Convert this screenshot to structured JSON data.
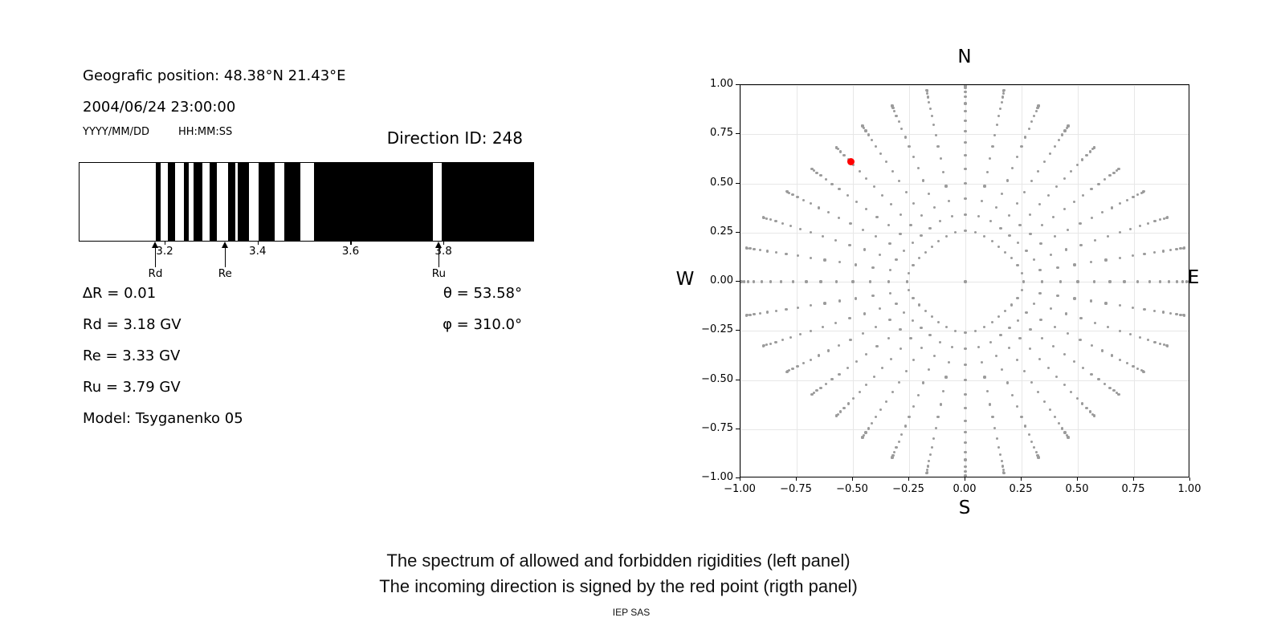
{
  "left_panel": {
    "geo_position": "Geografic position: 48.38°N 21.43°E",
    "datetime": "2004/06/24 23:00:00",
    "date_format_label": "YYYY/MM/DD",
    "time_format_label": "HH:MM:SS",
    "direction_id_label": "Direction ID: 248",
    "params": [
      "∆R = 0.01",
      "Rd = 3.18 GV",
      "Re = 3.33 GV",
      "Ru = 3.79 GV",
      "Model: Tsyganenko 05"
    ],
    "angles": [
      "θ = 53.58°",
      "φ = 310.0°"
    ]
  },
  "chart_data": [
    {
      "type": "area",
      "name": "rigidity-spectrum",
      "description": "Barcode-style spectrum of allowed (white) and forbidden (black) rigidities",
      "xlim": [
        3.015,
        3.995
      ],
      "xtick_values": [
        3.2,
        3.4,
        3.6,
        3.8
      ],
      "xtick_labels": [
        "3.2",
        "3.4",
        "3.6",
        "3.8"
      ],
      "delta_R": 0.01,
      "allowed_color": "#ffffff",
      "forbidden_color": "#000000",
      "forbidden_intervals": [
        [
          3.18,
          3.19
        ],
        [
          3.205,
          3.22
        ],
        [
          3.24,
          3.25
        ],
        [
          3.26,
          3.28
        ],
        [
          3.295,
          3.31
        ],
        [
          3.335,
          3.35
        ],
        [
          3.355,
          3.38
        ],
        [
          3.4,
          3.435
        ],
        [
          3.455,
          3.49
        ],
        [
          3.52,
          3.775
        ],
        [
          3.795,
          3.995
        ]
      ],
      "markers": [
        {
          "label": "Rd",
          "value": 3.18
        },
        {
          "label": "Re",
          "value": 3.33
        },
        {
          "label": "Ru",
          "value": 3.79
        }
      ]
    },
    {
      "type": "scatter",
      "name": "incoming-direction-map",
      "xlim": [
        -1,
        1
      ],
      "ylim": [
        -1,
        1
      ],
      "xtick_values": [
        -1.0,
        -0.75,
        -0.5,
        -0.25,
        0.0,
        0.25,
        0.5,
        0.75,
        1.0
      ],
      "xtick_labels": [
        "−1.00",
        "−0.75",
        "−0.50",
        "−0.25",
        "0.00",
        "0.25",
        "0.50",
        "0.75",
        "1.00"
      ],
      "ytick_values": [
        1.0,
        0.75,
        0.5,
        0.25,
        0.0,
        -0.25,
        -0.5,
        -0.75,
        -1.0
      ],
      "ytick_labels": [
        "1.00",
        "0.75",
        "0.50",
        "0.25",
        "0.00",
        "−0.25",
        "−0.50",
        "−0.75",
        "−1.00"
      ],
      "grid": true,
      "compass": {
        "top": "N",
        "bottom": "S",
        "left": "W",
        "right": "E"
      },
      "dot_color": "#9b9b9b",
      "center_dot": {
        "x": 0,
        "y": 0
      },
      "spokes": {
        "azimuth_start_deg": 0,
        "azimuth_step_deg": 10,
        "spoke_count": 36,
        "zenith_start_deg": 15,
        "zenith_end_deg": 90,
        "zenith_step_deg": 5,
        "radius_rule": "r = Rmax(az) * sin(zenith)",
        "max_radius_base": 0.89,
        "max_radius_amp": 0.11,
        "max_radius_rule": "Rmax = base + amp*cos(2*az)^2"
      },
      "red_point": {
        "x": -0.51,
        "y": 0.61,
        "color": "#ff0000"
      }
    }
  ],
  "captions": {
    "line1": "The spectrum of allowed and forbidden rigidities (left panel)",
    "line2": "The incoming direction is signed by the red point (rigth panel)"
  },
  "footer": {
    "credit": "IEP SAS"
  }
}
